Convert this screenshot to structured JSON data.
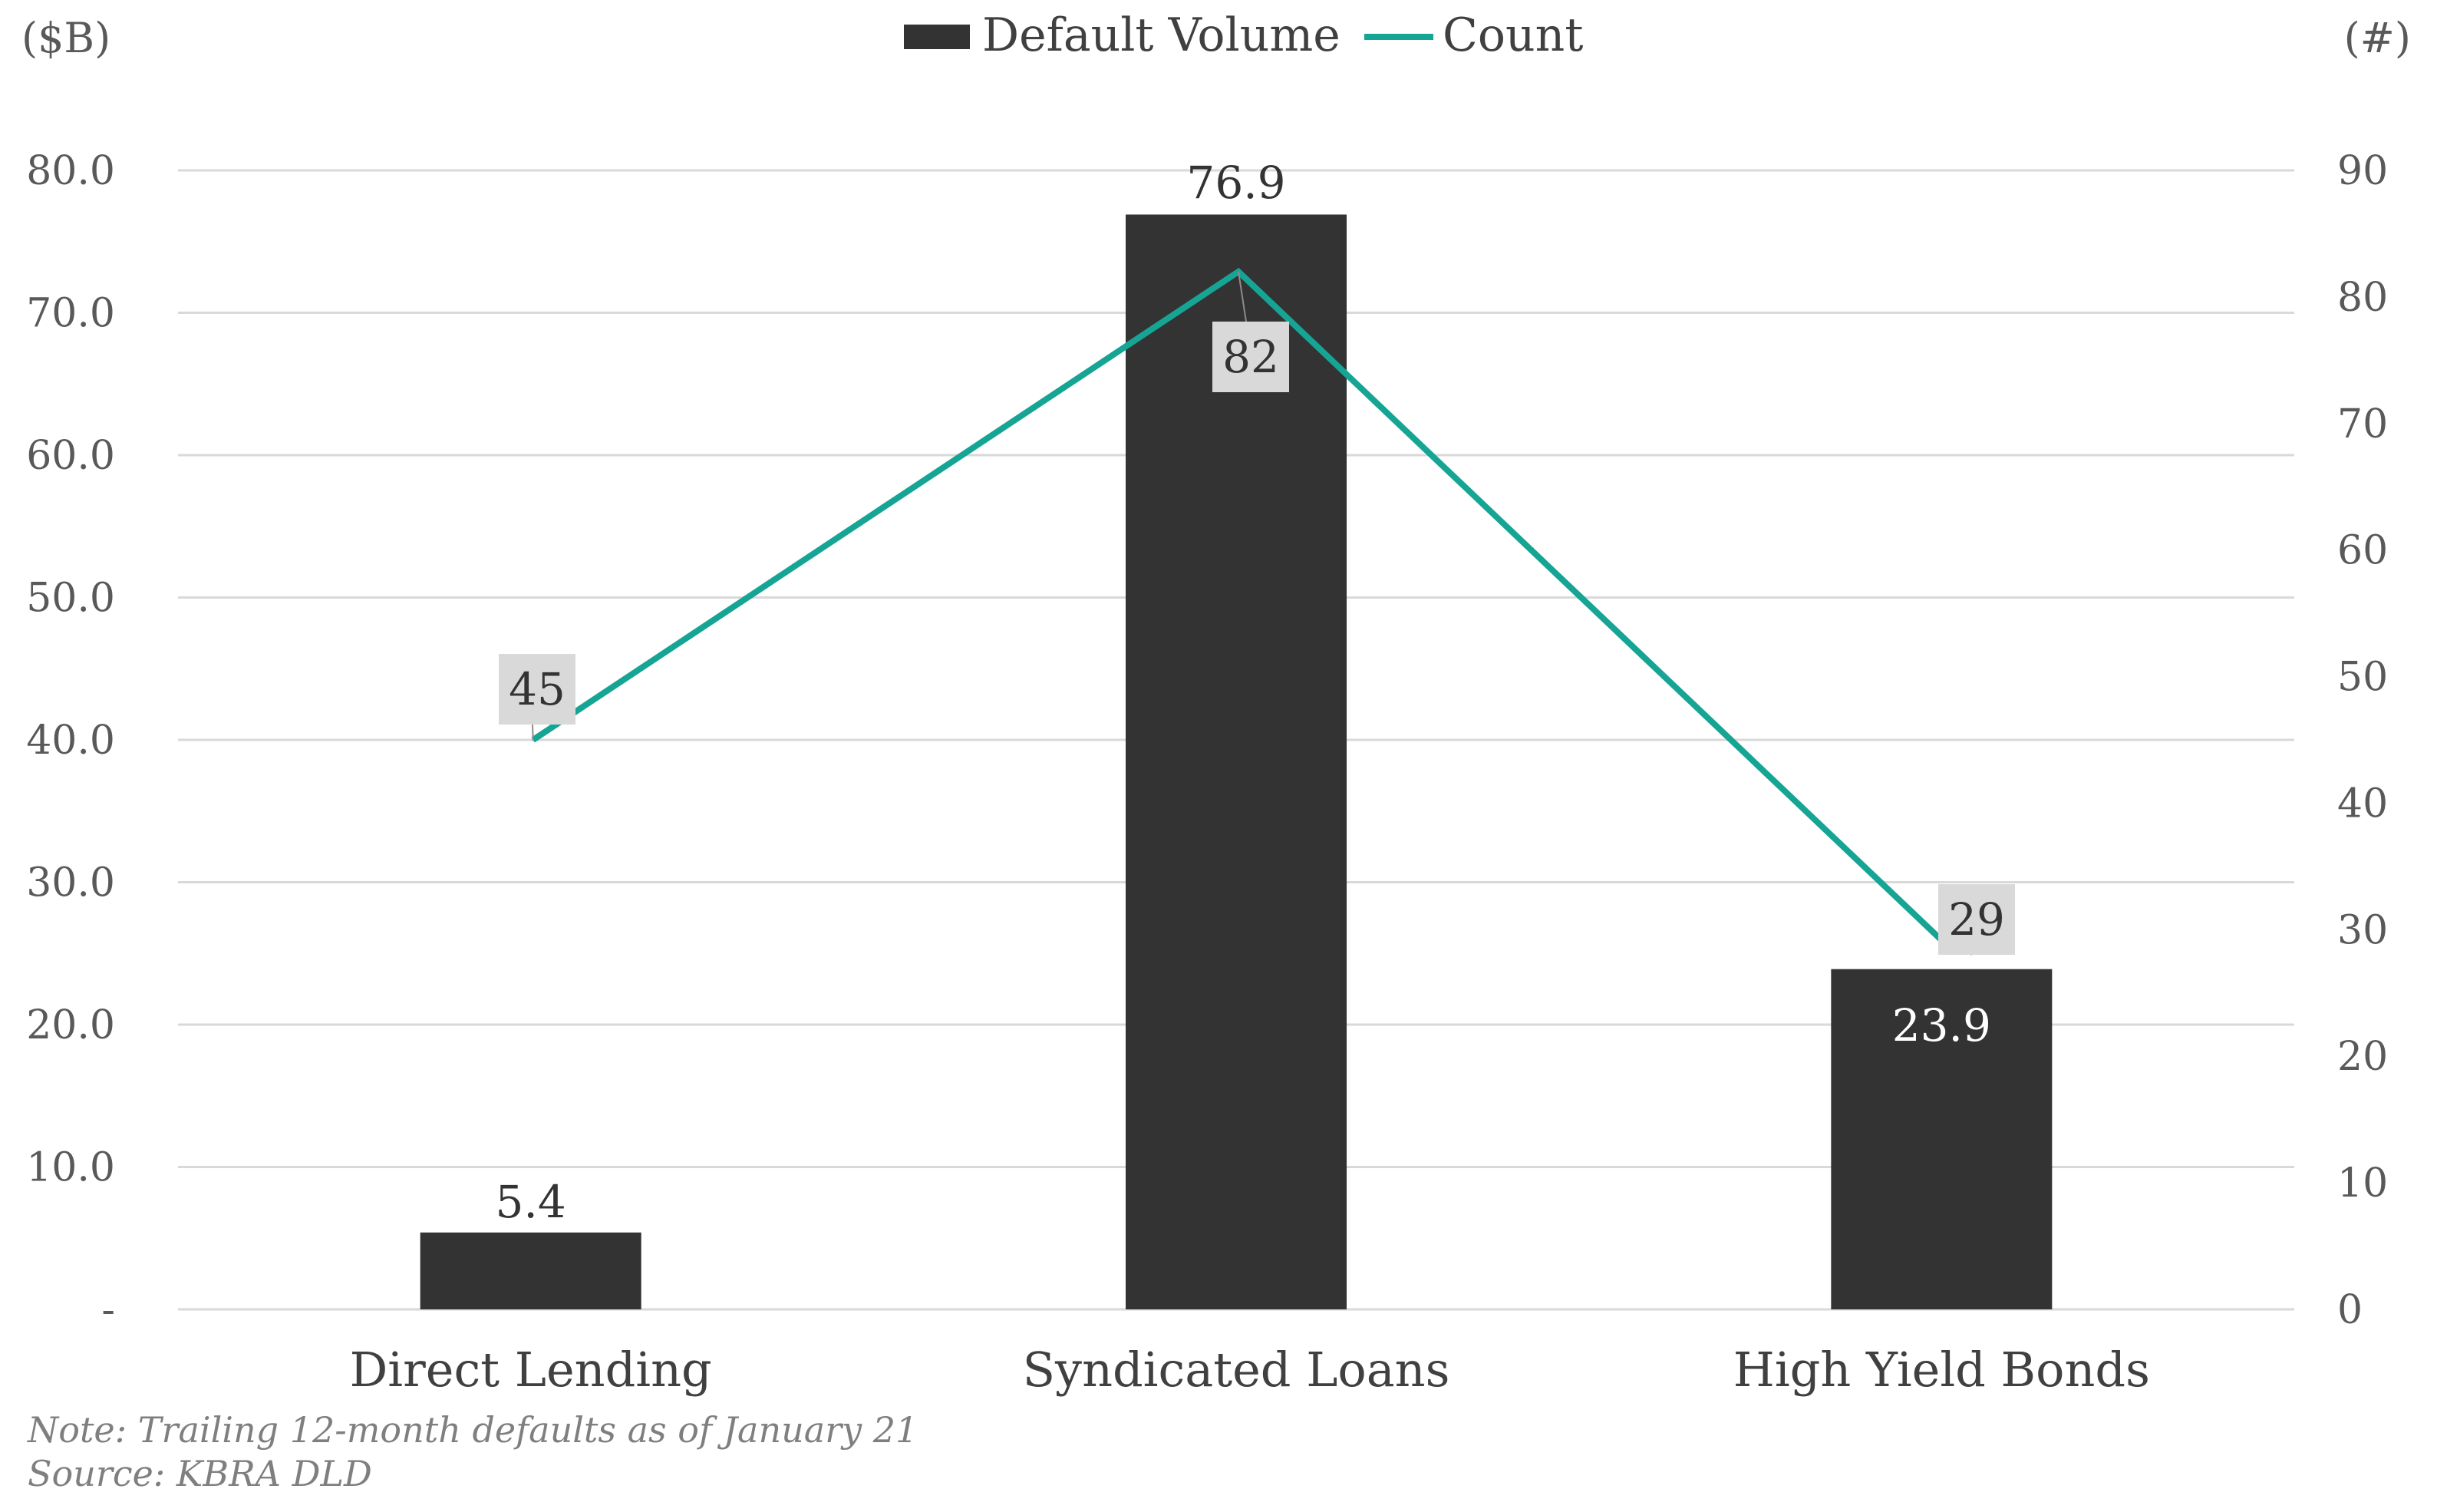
{
  "chart_data": {
    "type": "bar",
    "categories": [
      "Direct Lending",
      "Syndicated Loans",
      "High Yield Bonds"
    ],
    "series": [
      {
        "name": "Default Volume",
        "kind": "bar",
        "axis": "left",
        "values": [
          5.4,
          76.9,
          23.9
        ],
        "labels": [
          "5.4",
          "76.9",
          "23.9"
        ],
        "color": "#333333"
      },
      {
        "name": "Count",
        "kind": "line",
        "axis": "right",
        "values": [
          45,
          82,
          29
        ],
        "labels": [
          "45",
          "82",
          "29"
        ],
        "color": "#16a594"
      }
    ],
    "left_axis": {
      "title": "($B)",
      "min": 0,
      "max": 80,
      "ticks": [
        0,
        10,
        20,
        30,
        40,
        50,
        60,
        70,
        80
      ],
      "tick_labels": [
        "-",
        "10.0",
        "20.0",
        "30.0",
        "40.0",
        "50.0",
        "60.0",
        "70.0",
        "80.0"
      ]
    },
    "right_axis": {
      "title": "(#)",
      "min": 0,
      "max": 90,
      "ticks": [
        0,
        10,
        20,
        30,
        40,
        50,
        60,
        70,
        80,
        90
      ],
      "tick_labels": [
        "0",
        "10",
        "20",
        "30",
        "40",
        "50",
        "60",
        "70",
        "80",
        "90"
      ]
    },
    "grid": true,
    "legend_position": "top-center",
    "legend": [
      "Default Volume",
      "Count"
    ],
    "label_box_color": "#d9d9d9",
    "grid_color": "#d9d9d9"
  },
  "notes": {
    "note": "Note: Trailing 12-month defaults as of January 21",
    "source": "Source: KBRA DLD"
  }
}
